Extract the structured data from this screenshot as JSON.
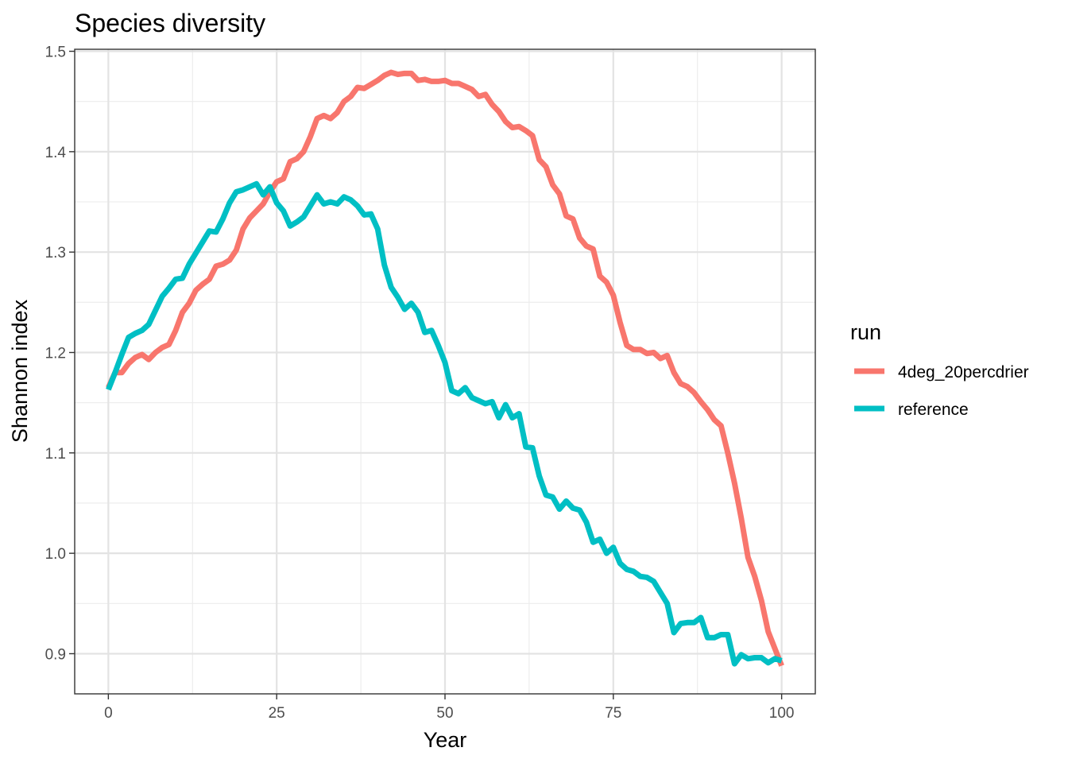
{
  "chart_data": {
    "type": "line",
    "title": "Species diversity",
    "xlabel": "Year",
    "ylabel": "Shannon index",
    "xlim": [
      -5,
      105
    ],
    "ylim": [
      0.86,
      1.502
    ],
    "x_ticks": [
      0,
      25,
      50,
      75,
      100
    ],
    "x_tick_labels": [
      "0",
      "25",
      "50",
      "75",
      "100"
    ],
    "y_ticks": [
      0.9,
      1.0,
      1.1,
      1.2,
      1.3,
      1.4,
      1.5
    ],
    "y_tick_labels": [
      "0.9",
      "1.0",
      "1.1",
      "1.2",
      "1.3",
      "1.4",
      "1.5"
    ],
    "grid": true,
    "legend": {
      "title": "run",
      "position": "right"
    },
    "x": [
      0,
      1,
      2,
      3,
      4,
      5,
      6,
      7,
      8,
      9,
      10,
      11,
      12,
      13,
      14,
      15,
      16,
      17,
      18,
      19,
      20,
      21,
      22,
      23,
      24,
      25,
      26,
      27,
      28,
      29,
      30,
      31,
      32,
      33,
      34,
      35,
      36,
      37,
      38,
      39,
      40,
      41,
      42,
      43,
      44,
      45,
      46,
      47,
      48,
      49,
      50,
      51,
      52,
      53,
      54,
      55,
      56,
      57,
      58,
      59,
      60,
      61,
      62,
      63,
      64,
      65,
      66,
      67,
      68,
      69,
      70,
      71,
      72,
      73,
      74,
      75,
      76,
      77,
      78,
      79,
      80,
      81,
      82,
      83,
      84,
      85,
      86,
      87,
      88,
      89,
      90,
      91,
      92,
      93,
      94,
      95,
      96,
      97,
      98,
      99,
      100
    ],
    "series": [
      {
        "name": "4deg_20percdrier",
        "color": "#F8766D",
        "values": [
          1.165,
          1.18,
          1.18,
          1.189,
          1.195,
          1.198,
          1.193,
          1.2,
          1.205,
          1.208,
          1.222,
          1.24,
          1.249,
          1.262,
          1.268,
          1.273,
          1.286,
          1.288,
          1.292,
          1.302,
          1.323,
          1.334,
          1.341,
          1.348,
          1.36,
          1.37,
          1.373,
          1.39,
          1.393,
          1.4,
          1.415,
          1.433,
          1.436,
          1.433,
          1.439,
          1.45,
          1.455,
          1.464,
          1.463,
          1.467,
          1.471,
          1.476,
          1.479,
          1.477,
          1.478,
          1.478,
          1.471,
          1.472,
          1.47,
          1.47,
          1.471,
          1.468,
          1.468,
          1.465,
          1.462,
          1.455,
          1.457,
          1.447,
          1.44,
          1.43,
          1.424,
          1.425,
          1.421,
          1.416,
          1.392,
          1.385,
          1.367,
          1.358,
          1.336,
          1.333,
          1.314,
          1.306,
          1.303,
          1.276,
          1.27,
          1.257,
          1.23,
          1.207,
          1.203,
          1.203,
          1.199,
          1.2,
          1.194,
          1.197,
          1.18,
          1.169,
          1.166,
          1.16,
          1.151,
          1.143,
          1.133,
          1.127,
          1.1,
          1.07,
          1.035,
          0.996,
          0.977,
          0.953,
          0.922,
          0.905,
          0.888
        ]
      },
      {
        "name": "reference",
        "color": "#00BFC4",
        "values": [
          1.163,
          1.18,
          1.198,
          1.215,
          1.219,
          1.222,
          1.228,
          1.242,
          1.256,
          1.264,
          1.273,
          1.274,
          1.288,
          1.299,
          1.31,
          1.321,
          1.32,
          1.333,
          1.349,
          1.36,
          1.362,
          1.365,
          1.368,
          1.357,
          1.365,
          1.349,
          1.341,
          1.326,
          1.33,
          1.335,
          1.346,
          1.357,
          1.348,
          1.35,
          1.348,
          1.355,
          1.352,
          1.346,
          1.337,
          1.338,
          1.323,
          1.287,
          1.265,
          1.255,
          1.243,
          1.249,
          1.24,
          1.22,
          1.222,
          1.207,
          1.19,
          1.162,
          1.159,
          1.165,
          1.155,
          1.152,
          1.149,
          1.151,
          1.135,
          1.148,
          1.135,
          1.139,
          1.106,
          1.105,
          1.077,
          1.058,
          1.056,
          1.044,
          1.052,
          1.045,
          1.043,
          1.031,
          1.011,
          1.014,
          1.0,
          1.006,
          0.99,
          0.984,
          0.982,
          0.977,
          0.976,
          0.972,
          0.961,
          0.95,
          0.921,
          0.93,
          0.931,
          0.931,
          0.936,
          0.916,
          0.916,
          0.919,
          0.919,
          0.89,
          0.899,
          0.895,
          0.896,
          0.896,
          0.891,
          0.895,
          0.893
        ]
      }
    ]
  }
}
